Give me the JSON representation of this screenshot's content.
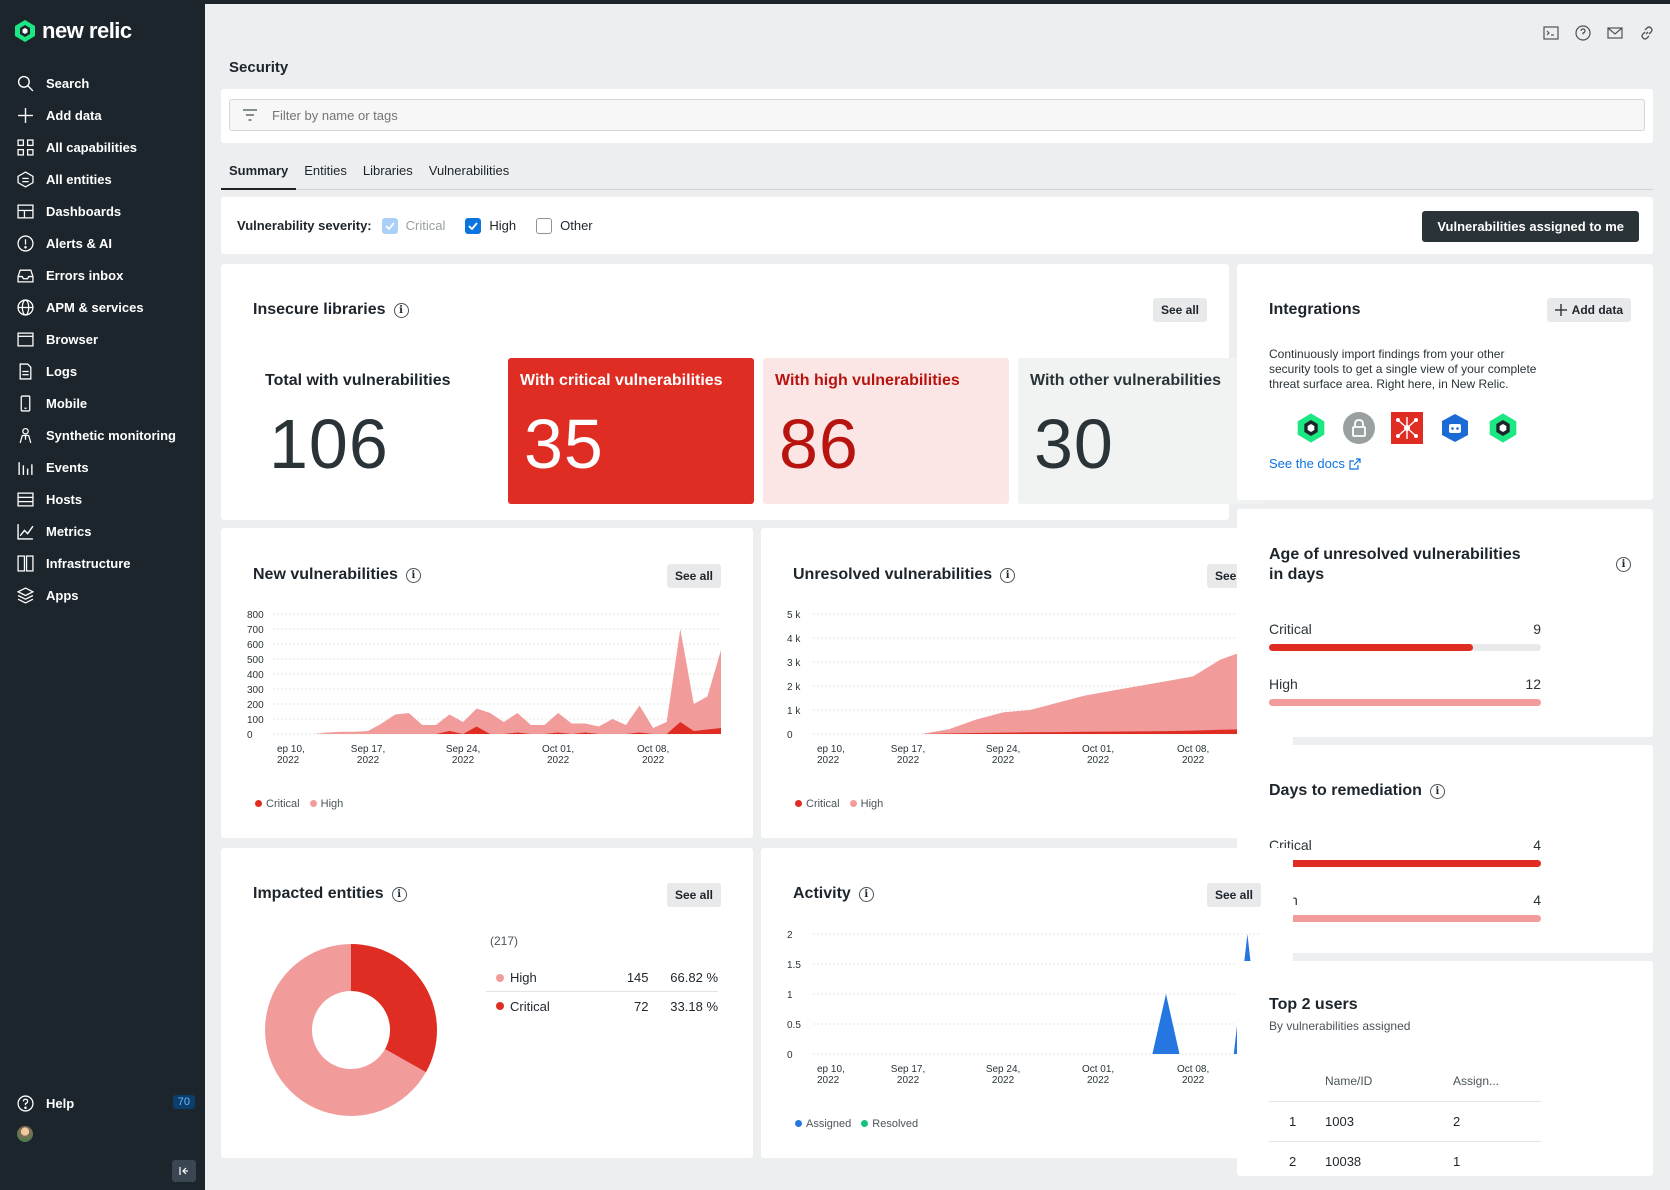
{
  "app": {
    "logo_text": "new relic"
  },
  "sidebar": {
    "items": [
      {
        "label": "Search",
        "icon": "search-icon"
      },
      {
        "label": "Add data",
        "icon": "plus-icon"
      },
      {
        "label": "All capabilities",
        "icon": "grid-icon"
      },
      {
        "label": "All entities",
        "icon": "entities-icon"
      },
      {
        "label": "Dashboards",
        "icon": "dashboard-icon"
      },
      {
        "label": "Alerts & AI",
        "icon": "alert-icon"
      },
      {
        "label": "Errors inbox",
        "icon": "inbox-icon"
      },
      {
        "label": "APM & services",
        "icon": "globe-icon"
      },
      {
        "label": "Browser",
        "icon": "browser-icon"
      },
      {
        "label": "Logs",
        "icon": "logs-icon"
      },
      {
        "label": "Mobile",
        "icon": "mobile-icon"
      },
      {
        "label": "Synthetic monitoring",
        "icon": "synthetic-icon"
      },
      {
        "label": "Events",
        "icon": "events-icon"
      },
      {
        "label": "Hosts",
        "icon": "hosts-icon"
      },
      {
        "label": "Metrics",
        "icon": "metrics-icon"
      },
      {
        "label": "Infrastructure",
        "icon": "infrastructure-icon"
      },
      {
        "label": "Apps",
        "icon": "apps-icon"
      }
    ],
    "help_label": "Help",
    "help_badge": "70"
  },
  "page": {
    "title": "Security",
    "filter_placeholder": "Filter by name or tags",
    "tabs": [
      "Summary",
      "Entities",
      "Libraries",
      "Vulnerabilities"
    ],
    "active_tab": "Summary"
  },
  "severity": {
    "label": "Vulnerability severity:",
    "options": [
      {
        "label": "Critical",
        "checked": true,
        "disabled": true
      },
      {
        "label": "High",
        "checked": true,
        "disabled": false
      },
      {
        "label": "Other",
        "checked": false,
        "disabled": false
      }
    ],
    "assigned_button": "Vulnerabilities assigned to me"
  },
  "insecure_libraries": {
    "title": "Insecure libraries",
    "see_all": "See all",
    "stats": [
      {
        "label": "Total with vulnerabilities",
        "value": "106"
      },
      {
        "label": "With critical vulnerabilities",
        "value": "35"
      },
      {
        "label": "With high vulnerabilities",
        "value": "86"
      },
      {
        "label": "With other vulnerabilities",
        "value": "30"
      }
    ]
  },
  "integrations": {
    "title": "Integrations",
    "add_data": "Add data",
    "description": "Continuously import findings from your other security tools to get a single view of your complete threat surface area. Right here, in New Relic.",
    "docs_link": "See the docs",
    "logos": [
      "new-relic-logo-icon",
      "lock-icon",
      "snyk-network-icon",
      "bot-icon",
      "new-relic-logo-icon"
    ]
  },
  "new_vulnerabilities": {
    "title": "New vulnerabilities",
    "see_all": "See all",
    "legend": [
      "Critical",
      "High"
    ]
  },
  "unresolved_vulnerabilities": {
    "title": "Unresolved vulnerabilities",
    "see_all": "See all",
    "legend": [
      "Critical",
      "High"
    ]
  },
  "age_unresolved": {
    "title": "Age of unresolved vulnerabilities in days",
    "rows": [
      {
        "label": "Critical",
        "value": "9",
        "fraction": 0.75
      },
      {
        "label": "High",
        "value": "12",
        "fraction": 1.0
      }
    ]
  },
  "days_to_remediation": {
    "title": "Days to remediation",
    "rows": [
      {
        "label": "Critical",
        "value": "4",
        "fraction": 1.0
      },
      {
        "label": "High",
        "value": "4",
        "fraction": 1.0
      }
    ]
  },
  "impacted_entities": {
    "title": "Impacted entities",
    "see_all": "See all",
    "total": "(217)",
    "rows": [
      {
        "label": "High",
        "count": "145",
        "pct": "66.82 %"
      },
      {
        "label": "Critical",
        "count": "72",
        "pct": "33.18 %"
      }
    ]
  },
  "activity": {
    "title": "Activity",
    "see_all": "See all",
    "legend": [
      "Assigned",
      "Resolved"
    ]
  },
  "top_users": {
    "title": "Top 2 users",
    "subtitle": "By vulnerabilities assigned",
    "headers": [
      "Name/ID",
      "Assign..."
    ],
    "rows": [
      {
        "rank": "1",
        "name": "1003",
        "assigned": "2"
      },
      {
        "rank": "2",
        "name": "10038",
        "assigned": "1"
      }
    ]
  },
  "colors": {
    "critical": "#df2d24",
    "high": "#f19c9a",
    "high_bg": "#fce5e5",
    "other_bg": "#f1f2f2",
    "assigned": "#2576e1",
    "resolved": "#11c27b"
  },
  "chart_data": [
    {
      "id": "new_vulnerabilities",
      "type": "area",
      "x_ticks": [
        "ep 10,\n2022",
        "Sep 17,\n2022",
        "Sep 24,\n2022",
        "Oct 01,\n2022",
        "Oct 08,\n2022"
      ],
      "y_ticks": [
        "800",
        "700",
        "600",
        "500",
        "400",
        "300",
        "200",
        "100",
        "0"
      ],
      "ylim": [
        0,
        800
      ],
      "x": [
        0,
        1,
        2,
        3,
        4,
        5,
        6,
        7,
        8,
        9,
        10,
        11,
        12,
        13,
        14,
        15,
        16,
        17,
        18,
        19,
        20,
        21,
        22,
        23,
        24,
        25,
        26,
        27,
        28,
        29,
        30,
        31,
        32,
        33
      ],
      "series": [
        {
          "name": "High",
          "values": [
            0,
            0,
            0,
            0,
            10,
            15,
            15,
            20,
            70,
            130,
            140,
            60,
            60,
            130,
            80,
            170,
            140,
            80,
            140,
            60,
            60,
            140,
            70,
            70,
            50,
            100,
            60,
            190,
            40,
            80,
            700,
            200,
            250,
            560
          ]
        },
        {
          "name": "Critical",
          "values": [
            0,
            0,
            0,
            0,
            0,
            0,
            0,
            0,
            0,
            0,
            0,
            0,
            0,
            20,
            0,
            50,
            0,
            0,
            10,
            0,
            0,
            10,
            0,
            10,
            0,
            0,
            0,
            10,
            0,
            0,
            80,
            20,
            30,
            40
          ]
        }
      ]
    },
    {
      "id": "unresolved_vulnerabilities",
      "type": "area",
      "x_ticks": [
        "ep 10,\n2022",
        "Sep 17,\n2022",
        "Sep 24,\n2022",
        "Oct 01,\n2022",
        "Oct 08,\n2022"
      ],
      "y_ticks": [
        "5 k",
        "4 k",
        "3 k",
        "2 k",
        "1 k",
        "0"
      ],
      "ylim": [
        0,
        5000
      ],
      "x": [
        0,
        2,
        4,
        6,
        8,
        10,
        12,
        14,
        16,
        18,
        20,
        22,
        24,
        26,
        28,
        30,
        32,
        33
      ],
      "series": [
        {
          "name": "High",
          "values": [
            0,
            0,
            0,
            0,
            0,
            200,
            600,
            900,
            1000,
            1300,
            1600,
            1800,
            2000,
            2200,
            2400,
            3100,
            3500,
            4200
          ]
        },
        {
          "name": "Critical",
          "values": [
            0,
            0,
            0,
            0,
            0,
            20,
            40,
            60,
            70,
            80,
            90,
            100,
            110,
            120,
            140,
            180,
            200,
            280
          ]
        }
      ]
    },
    {
      "id": "activity",
      "type": "area",
      "x_ticks": [
        "ep 10,\n2022",
        "Sep 17,\n2022",
        "Sep 24,\n2022",
        "Oct 01,\n2022",
        "Oct 08,\n2022"
      ],
      "y_ticks": [
        "2",
        "1.5",
        "1",
        "0.5",
        "0"
      ],
      "ylim": [
        0,
        2
      ],
      "x": [
        0,
        1,
        2,
        3,
        4,
        5,
        6,
        7,
        8,
        9,
        10,
        11,
        12,
        13,
        14,
        15,
        16,
        17,
        18,
        19,
        20,
        21,
        22,
        23,
        24,
        25,
        26,
        27,
        28,
        29,
        30,
        31,
        32,
        33
      ],
      "series": [
        {
          "name": "Assigned",
          "values": [
            0,
            0,
            0,
            0,
            0,
            0,
            0,
            0,
            0,
            0,
            0,
            0,
            0,
            0,
            0,
            0,
            0,
            0,
            0,
            0,
            0,
            0,
            0,
            0,
            0,
            0,
            1,
            0,
            0,
            0,
            0,
            0,
            2,
            0
          ]
        },
        {
          "name": "Resolved",
          "values": [
            0,
            0,
            0,
            0,
            0,
            0,
            0,
            0,
            0,
            0,
            0,
            0,
            0,
            0,
            0,
            0,
            0,
            0,
            0,
            0,
            0,
            0,
            0,
            0,
            0,
            0,
            0,
            0,
            0,
            0,
            0,
            0,
            0,
            0
          ]
        }
      ]
    },
    {
      "id": "impacted_entities",
      "type": "pie",
      "categories": [
        "High",
        "Critical"
      ],
      "values": [
        145,
        72
      ],
      "total": 217
    }
  ]
}
